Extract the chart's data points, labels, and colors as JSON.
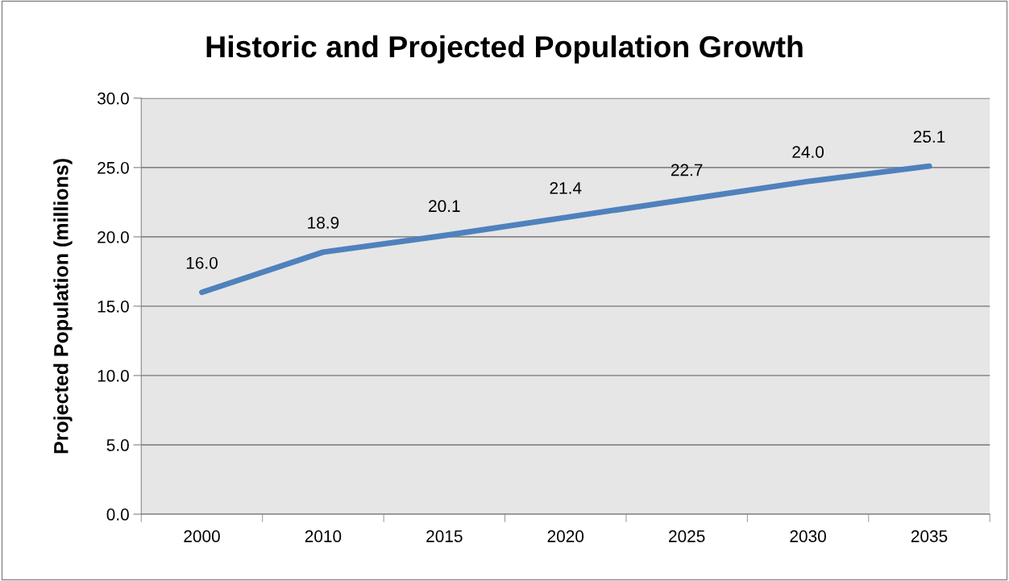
{
  "chart_data": {
    "type": "line",
    "title": "Historic and Projected Population Growth",
    "ylabel": "Projected Population (millions)",
    "categories": [
      "2000",
      "2010",
      "2015",
      "2020",
      "2025",
      "2030",
      "2035"
    ],
    "series": [
      {
        "color": "#4f81bd",
        "values": [
          16.0,
          18.9,
          20.1,
          21.4,
          22.7,
          24.0,
          25.1
        ],
        "value_labels": [
          "16.0",
          "18.9",
          "20.1",
          "21.4",
          "22.7",
          "24.0",
          "25.1"
        ]
      }
    ],
    "ylim": [
      0,
      30
    ],
    "yticks": [
      {
        "value": 0,
        "label": "0.0"
      },
      {
        "value": 5,
        "label": "5.0"
      },
      {
        "value": 10,
        "label": "10.0"
      },
      {
        "value": 15,
        "label": "15.0"
      },
      {
        "value": 20,
        "label": "20.0"
      },
      {
        "value": 25,
        "label": "25.0"
      },
      {
        "value": 30,
        "label": "30.0"
      }
    ],
    "grid": "y",
    "marker": "none",
    "line_style": "solid"
  }
}
